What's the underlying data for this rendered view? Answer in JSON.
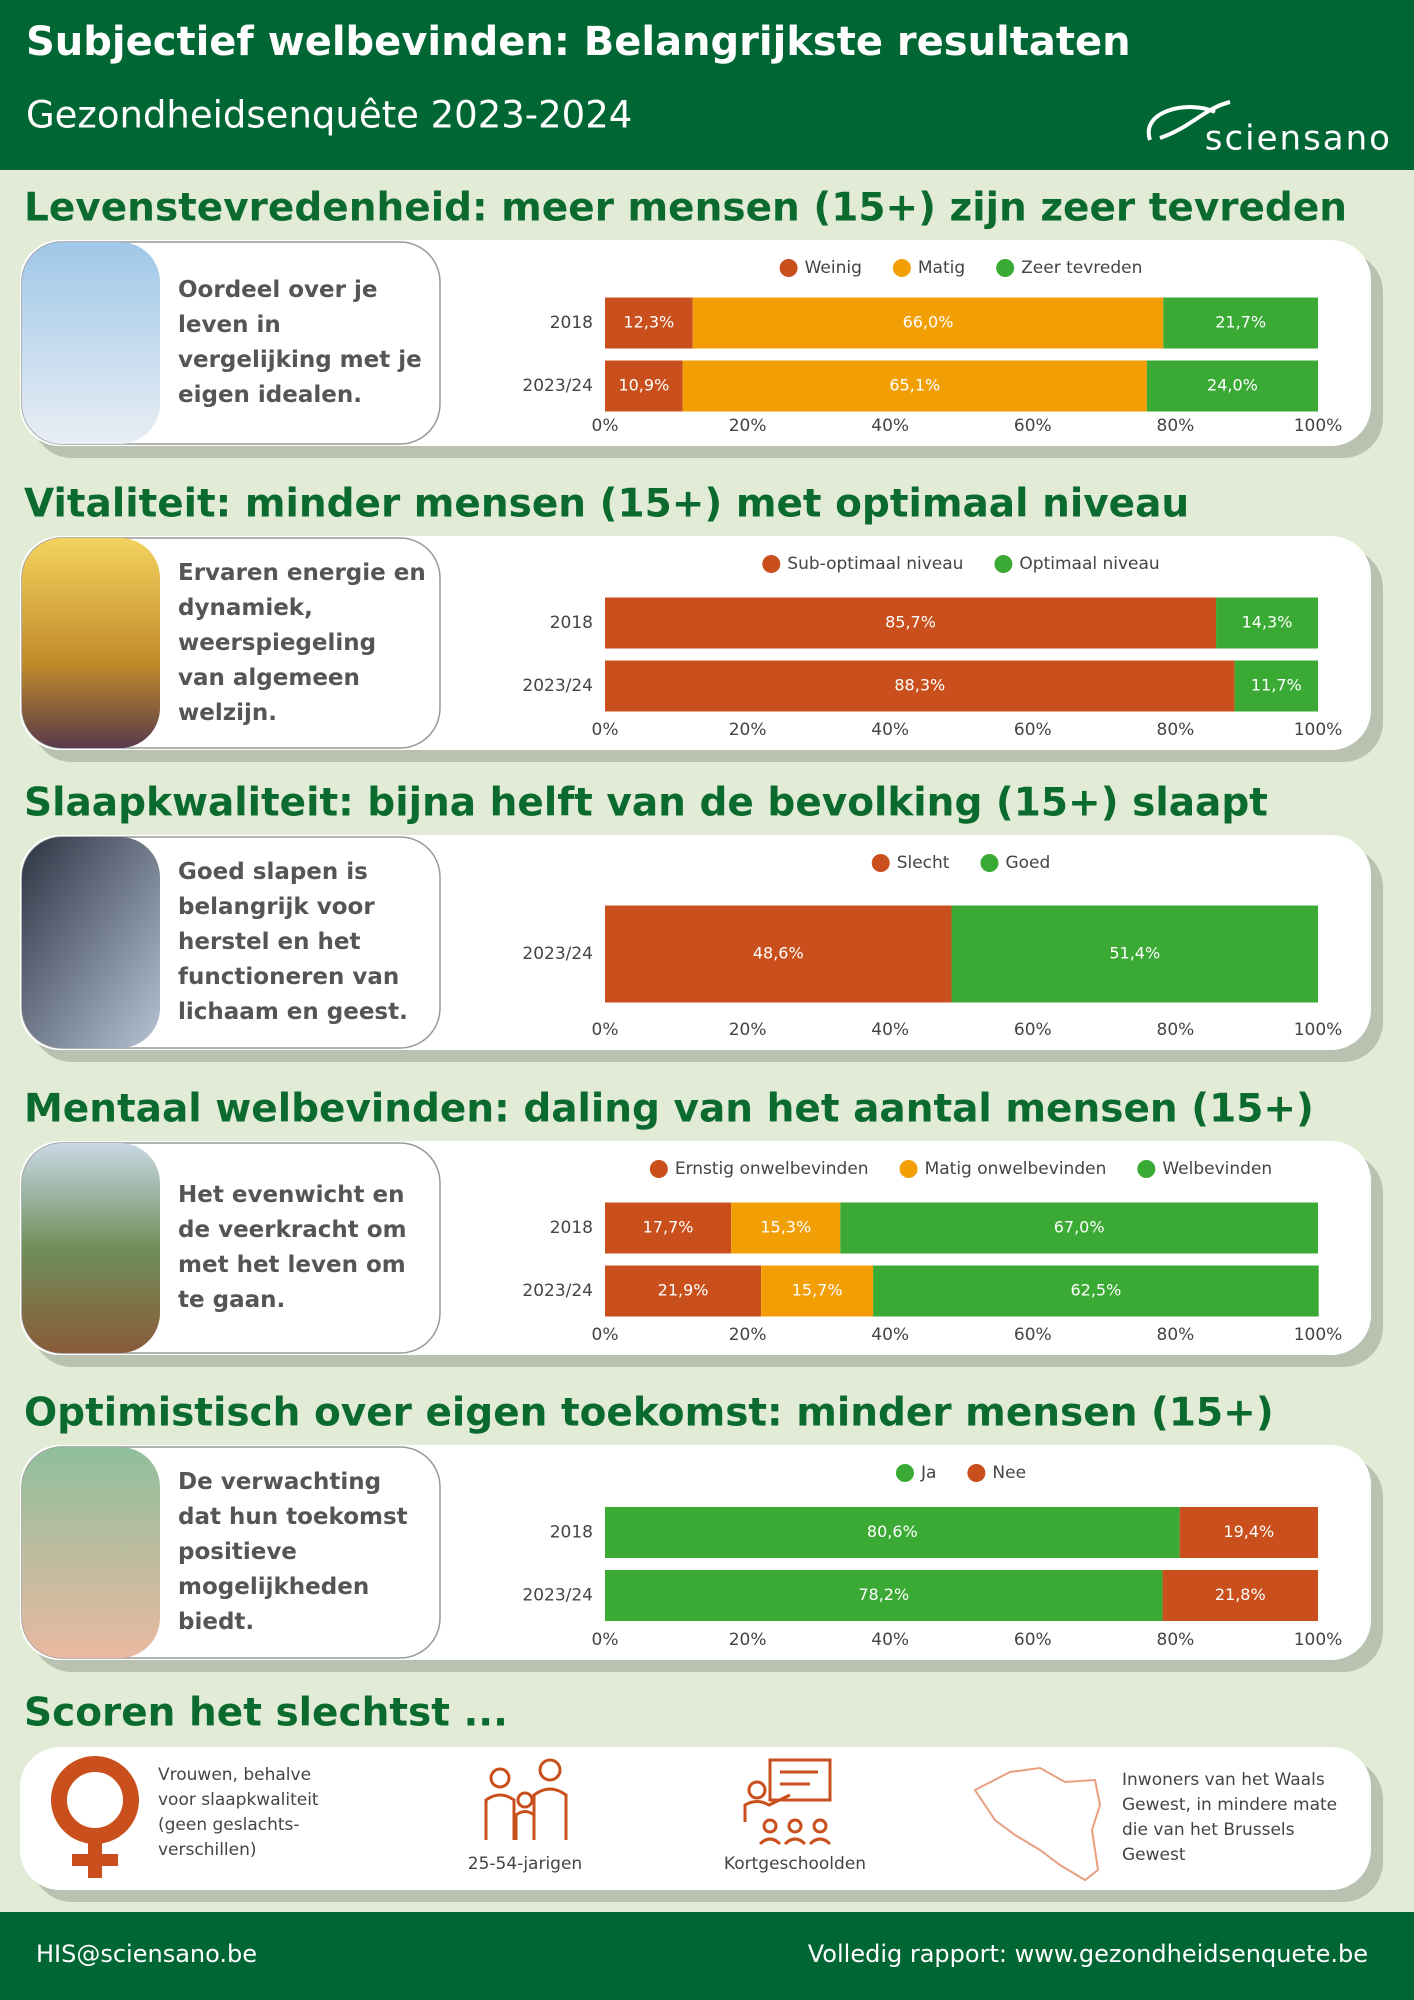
{
  "header": {
    "title": "Subjectief welbevinden: Belangrijkste resultaten",
    "subtitle": "Gezondheidsenquête 2023-2024",
    "logo": "sciensano"
  },
  "chart_data": [
    {
      "type": "bar",
      "orientation": "horizontal",
      "stacked": true,
      "title": "Levenstevredenheid: meer mensen (15+) zijn zeer tevreden",
      "description": "Oordeel over je leven in vergelijking met je eigen idealen.",
      "categories": [
        "2018",
        "2023/24"
      ],
      "series": [
        {
          "name": "Weinig",
          "color": "#c9501c",
          "values": [
            12.3,
            10.9
          ],
          "value_labels": [
            "12,3%",
            "10,9%"
          ]
        },
        {
          "name": "Matig",
          "color": "#f29f05",
          "values": [
            66.0,
            65.1
          ],
          "value_labels": [
            "66,0%",
            "65,1%"
          ]
        },
        {
          "name": "Zeer tevreden",
          "color": "#3aaa35",
          "values": [
            21.7,
            24.0
          ],
          "value_labels": [
            "21,7%",
            "24,0%"
          ]
        }
      ],
      "xlim": [
        0,
        100
      ],
      "xticks": [
        {
          "value": 0,
          "label": "0%"
        },
        {
          "value": 20,
          "label": "20%"
        },
        {
          "value": 40,
          "label": "40%"
        },
        {
          "value": 60,
          "label": "60%"
        },
        {
          "value": 80,
          "label": "80%"
        },
        {
          "value": 100,
          "label": "100%"
        }
      ]
    },
    {
      "type": "bar",
      "orientation": "horizontal",
      "stacked": true,
      "title": "Vitaliteit: minder mensen (15+) met optimaal niveau",
      "description": "Ervaren energie en dynamiek, weerspiegeling van algemeen welzijn.",
      "categories": [
        "2018",
        "2023/24"
      ],
      "series": [
        {
          "name": "Sub-optimaal niveau",
          "color": "#c9501c",
          "values": [
            85.7,
            88.3
          ],
          "value_labels": [
            "85,7%",
            "88,3%"
          ]
        },
        {
          "name": "Optimaal niveau",
          "color": "#3aaa35",
          "values": [
            14.3,
            11.7
          ],
          "value_labels": [
            "14,3%",
            "11,7%"
          ]
        }
      ],
      "xlim": [
        0,
        100
      ],
      "xticks": [
        {
          "value": 0,
          "label": "0%"
        },
        {
          "value": 20,
          "label": "20%"
        },
        {
          "value": 40,
          "label": "40%"
        },
        {
          "value": 60,
          "label": "60%"
        },
        {
          "value": 80,
          "label": "80%"
        },
        {
          "value": 100,
          "label": "100%"
        }
      ]
    },
    {
      "type": "bar",
      "orientation": "horizontal",
      "stacked": true,
      "title": "Slaapkwaliteit: bijna helft van de bevolking (15+) slaapt",
      "description": "Goed slapen is belangrijk voor herstel en het functioneren van lichaam en geest.",
      "categories": [
        "2023/24"
      ],
      "series": [
        {
          "name": "Slecht",
          "color": "#c9501c",
          "values": [
            48.6
          ],
          "value_labels": [
            "48,6%"
          ]
        },
        {
          "name": "Goed",
          "color": "#3aaa35",
          "values": [
            51.4
          ],
          "value_labels": [
            "51,4%"
          ]
        }
      ],
      "xlim": [
        0,
        100
      ],
      "xticks": [
        {
          "value": 0,
          "label": "0%"
        },
        {
          "value": 20,
          "label": "20%"
        },
        {
          "value": 40,
          "label": "40%"
        },
        {
          "value": 60,
          "label": "60%"
        },
        {
          "value": 80,
          "label": "80%"
        },
        {
          "value": 100,
          "label": "100%"
        }
      ]
    },
    {
      "type": "bar",
      "orientation": "horizontal",
      "stacked": true,
      "title": "Mentaal welbevinden: daling van het aantal mensen (15+)",
      "description": "Het evenwicht en de veerkracht om met het leven om te gaan.",
      "categories": [
        "2018",
        "2023/24"
      ],
      "series": [
        {
          "name": "Ernstig onwelbevinden",
          "color": "#c9501c",
          "values": [
            17.7,
            21.9
          ],
          "value_labels": [
            "17,7%",
            "21,9%"
          ]
        },
        {
          "name": "Matig onwelbevinden",
          "color": "#f29f05",
          "values": [
            15.3,
            15.7
          ],
          "value_labels": [
            "15,3%",
            "15,7%"
          ]
        },
        {
          "name": "Welbevinden",
          "color": "#3aaa35",
          "values": [
            67.0,
            62.5
          ],
          "value_labels": [
            "67,0%",
            "62,5%"
          ]
        }
      ],
      "xlim": [
        0,
        100
      ],
      "xticks": [
        {
          "value": 0,
          "label": "0%"
        },
        {
          "value": 20,
          "label": "20%"
        },
        {
          "value": 40,
          "label": "40%"
        },
        {
          "value": 60,
          "label": "60%"
        },
        {
          "value": 80,
          "label": "80%"
        },
        {
          "value": 100,
          "label": "100%"
        }
      ]
    },
    {
      "type": "bar",
      "orientation": "horizontal",
      "stacked": true,
      "title": "Optimistisch over eigen toekomst: minder mensen (15+)",
      "description": "De verwachting dat hun toekomst positieve mogelijkheden biedt.",
      "categories": [
        "2018",
        "2023/24"
      ],
      "series": [
        {
          "name": "Ja",
          "color": "#3aaa35",
          "values": [
            80.6,
            78.2
          ],
          "value_labels": [
            "80,6%",
            "78,2%"
          ]
        },
        {
          "name": "Nee",
          "color": "#c9501c",
          "values": [
            19.4,
            21.8
          ],
          "value_labels": [
            "19,4%",
            "21,8%"
          ]
        }
      ],
      "xlim": [
        0,
        100
      ],
      "xticks": [
        {
          "value": 0,
          "label": "0%"
        },
        {
          "value": 20,
          "label": "20%"
        },
        {
          "value": 40,
          "label": "40%"
        },
        {
          "value": 60,
          "label": "60%"
        },
        {
          "value": 80,
          "label": "80%"
        },
        {
          "value": 100,
          "label": "100%"
        }
      ]
    }
  ],
  "worst": {
    "title": "Scoren het slechtst ...",
    "items": [
      "Vrouwen, behalve voor slaapkwaliteit (geen geslachts-verschillen)",
      "25-54-jarigen",
      "Kortgeschoolden",
      "Inwoners van het Waals Gewest, in mindere mate die van het Brussels Gewest"
    ]
  },
  "footer": {
    "email": "HIS@sciensano.be",
    "report": "Volledig rapport: www.gezondheidsenquete.be"
  }
}
